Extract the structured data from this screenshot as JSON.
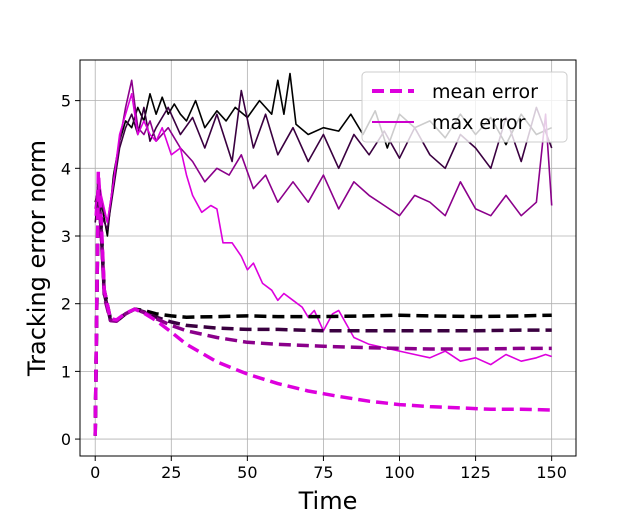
{
  "chart_data": {
    "type": "line",
    "xlabel": "Time",
    "ylabel": "Tracking error norm",
    "xlim": [
      -5,
      158
    ],
    "ylim": [
      -0.25,
      5.6
    ],
    "xticks": [
      0,
      25,
      50,
      75,
      100,
      125,
      150
    ],
    "yticks": [
      0,
      1,
      2,
      3,
      4,
      5
    ],
    "grid": true,
    "legend_placement": "top-right",
    "legend": [
      {
        "label": "mean error",
        "style": "dashed",
        "color": "#dd00dd"
      },
      {
        "label": "max error",
        "style": "solid",
        "color": "#cc00cc"
      }
    ],
    "colors": [
      "#000000",
      "#3a0040",
      "#8b008b",
      "#dd00dd"
    ],
    "series": [
      {
        "kind": "mean",
        "color": "#000000",
        "x": [
          0,
          1,
          2,
          3,
          5,
          7,
          10,
          13,
          16,
          20,
          25,
          30,
          40,
          50,
          60,
          75,
          90,
          100,
          110,
          125,
          140,
          150
        ],
        "y": [
          0.05,
          3.8,
          3.1,
          2.2,
          1.78,
          1.75,
          1.85,
          1.92,
          1.9,
          1.85,
          1.82,
          1.8,
          1.81,
          1.82,
          1.81,
          1.81,
          1.82,
          1.83,
          1.82,
          1.81,
          1.82,
          1.83
        ]
      },
      {
        "kind": "mean",
        "color": "#3a0040",
        "x": [
          0,
          1,
          2,
          3,
          5,
          7,
          10,
          13,
          16,
          20,
          25,
          30,
          40,
          50,
          60,
          75,
          90,
          100,
          110,
          125,
          140,
          150
        ],
        "y": [
          0.05,
          3.75,
          3.05,
          2.15,
          1.76,
          1.74,
          1.85,
          1.92,
          1.88,
          1.8,
          1.73,
          1.68,
          1.64,
          1.62,
          1.62,
          1.6,
          1.6,
          1.6,
          1.6,
          1.6,
          1.61,
          1.61
        ]
      },
      {
        "kind": "mean",
        "color": "#8b008b",
        "x": [
          0,
          1,
          2,
          3,
          5,
          7,
          10,
          13,
          16,
          20,
          25,
          30,
          40,
          50,
          60,
          75,
          90,
          100,
          110,
          125,
          140,
          150
        ],
        "y": [
          0.05,
          3.7,
          3.0,
          2.1,
          1.75,
          1.74,
          1.85,
          1.92,
          1.87,
          1.78,
          1.68,
          1.6,
          1.5,
          1.43,
          1.4,
          1.37,
          1.35,
          1.34,
          1.33,
          1.33,
          1.34,
          1.34
        ]
      },
      {
        "kind": "mean",
        "color": "#dd00dd",
        "x": [
          0,
          1,
          2,
          3,
          5,
          7,
          10,
          13,
          16,
          20,
          25,
          30,
          40,
          50,
          60,
          70,
          80,
          90,
          100,
          110,
          120,
          130,
          140,
          150
        ],
        "y": [
          0.05,
          3.95,
          3.2,
          2.2,
          1.78,
          1.76,
          1.86,
          1.92,
          1.86,
          1.75,
          1.58,
          1.4,
          1.14,
          0.96,
          0.82,
          0.71,
          0.63,
          0.56,
          0.51,
          0.48,
          0.46,
          0.44,
          0.44,
          0.43
        ]
      },
      {
        "kind": "max",
        "color": "#000000",
        "x": [
          0,
          1,
          2,
          4,
          6,
          8,
          10,
          12,
          14,
          16,
          18,
          20,
          22,
          24,
          26,
          28,
          30,
          33,
          36,
          40,
          43,
          46,
          50,
          54,
          58,
          60,
          62,
          64,
          66,
          70,
          75,
          80,
          84,
          88,
          92,
          96,
          100,
          105,
          110,
          115,
          120,
          125,
          130,
          135,
          140,
          145,
          150
        ],
        "y": [
          3.5,
          3.7,
          3.5,
          3.0,
          3.9,
          4.4,
          4.7,
          4.6,
          4.9,
          4.7,
          5.1,
          4.8,
          5.05,
          4.8,
          4.95,
          4.8,
          4.7,
          5.0,
          4.6,
          4.85,
          4.7,
          4.9,
          4.75,
          5.0,
          4.8,
          5.3,
          4.8,
          5.4,
          4.65,
          4.5,
          4.6,
          4.55,
          4.8,
          4.5,
          4.85,
          4.3,
          4.8,
          4.6,
          4.7,
          4.45,
          4.8,
          4.5,
          4.75,
          4.35,
          4.8,
          4.5,
          4.6
        ]
      },
      {
        "kind": "max",
        "color": "#3a0040",
        "x": [
          0,
          1,
          2,
          4,
          6,
          8,
          10,
          12,
          14,
          16,
          18,
          20,
          24,
          28,
          32,
          36,
          40,
          45,
          48,
          52,
          56,
          60,
          65,
          70,
          75,
          80,
          85,
          90,
          95,
          100,
          105,
          110,
          115,
          120,
          125,
          130,
          135,
          140,
          145,
          150
        ],
        "y": [
          3.2,
          3.6,
          3.3,
          3.1,
          3.7,
          4.3,
          4.6,
          4.8,
          4.5,
          4.9,
          4.4,
          4.6,
          4.9,
          4.5,
          4.75,
          4.3,
          4.8,
          4.1,
          5.15,
          4.3,
          4.8,
          4.2,
          4.6,
          4.1,
          4.5,
          4.0,
          4.5,
          4.2,
          4.55,
          4.15,
          4.6,
          4.2,
          4.0,
          4.5,
          4.3,
          4.0,
          4.75,
          4.1,
          4.9,
          4.3
        ]
      },
      {
        "kind": "max",
        "color": "#8b008b",
        "x": [
          0,
          1,
          2,
          4,
          6,
          8,
          10,
          12,
          14,
          16,
          18,
          20,
          24,
          28,
          32,
          36,
          40,
          44,
          48,
          52,
          56,
          60,
          65,
          70,
          75,
          80,
          85,
          90,
          95,
          100,
          105,
          110,
          115,
          120,
          125,
          130,
          135,
          140,
          145,
          148,
          150
        ],
        "y": [
          3.4,
          3.8,
          3.5,
          3.2,
          3.8,
          4.4,
          4.9,
          5.3,
          4.6,
          4.5,
          4.7,
          4.4,
          4.6,
          4.3,
          4.1,
          3.8,
          4.0,
          3.9,
          4.2,
          3.7,
          3.9,
          3.5,
          3.8,
          3.5,
          3.9,
          3.4,
          3.8,
          3.6,
          3.45,
          3.3,
          3.6,
          3.5,
          3.3,
          3.8,
          3.4,
          3.3,
          3.6,
          3.3,
          3.5,
          4.8,
          3.45
        ]
      },
      {
        "kind": "max",
        "color": "#dd00dd",
        "x": [
          0,
          1,
          2,
          4,
          6,
          8,
          10,
          12,
          14,
          16,
          18,
          20,
          22,
          25,
          28,
          30,
          32,
          35,
          38,
          40,
          42,
          45,
          48,
          50,
          52,
          55,
          58,
          60,
          62,
          65,
          68,
          70,
          72,
          75,
          78,
          80,
          85,
          90,
          95,
          100,
          105,
          110,
          115,
          120,
          125,
          130,
          135,
          140,
          145,
          148,
          150
        ],
        "y": [
          3.3,
          3.9,
          3.6,
          3.2,
          3.8,
          4.5,
          4.8,
          5.1,
          4.5,
          4.7,
          4.5,
          4.4,
          4.6,
          4.2,
          4.3,
          3.9,
          3.6,
          3.35,
          3.45,
          3.4,
          2.9,
          2.9,
          2.7,
          2.5,
          2.6,
          2.3,
          2.2,
          2.05,
          2.15,
          2.05,
          1.95,
          1.8,
          1.9,
          1.6,
          1.85,
          1.9,
          1.5,
          1.4,
          1.35,
          1.3,
          1.25,
          1.2,
          1.3,
          1.15,
          1.2,
          1.1,
          1.25,
          1.15,
          1.2,
          1.25,
          1.22
        ]
      }
    ]
  }
}
